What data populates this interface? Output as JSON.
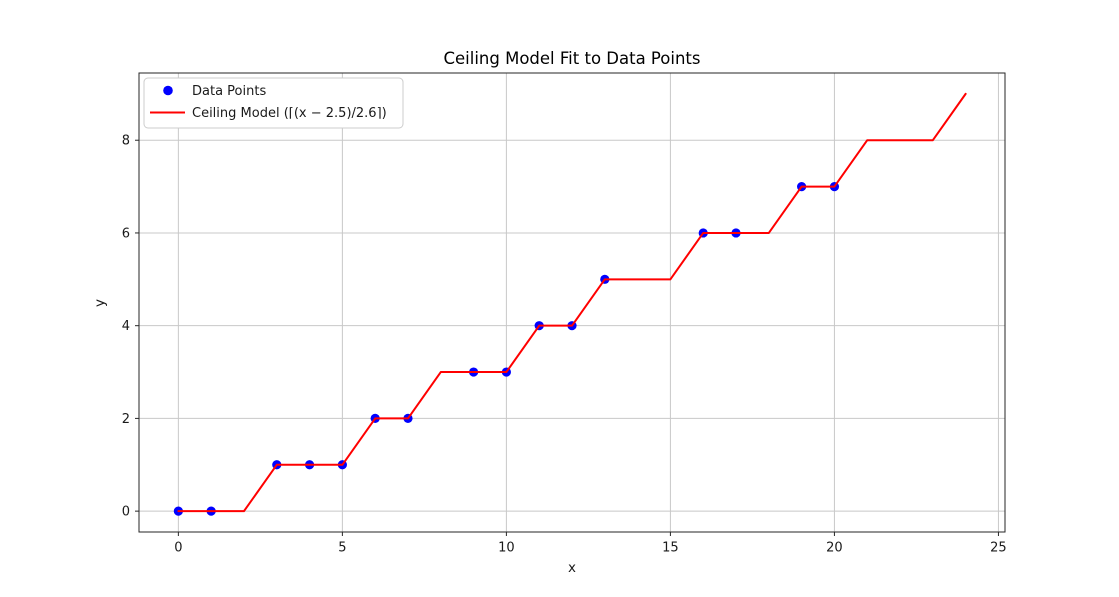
{
  "chart_data": {
    "type": "line",
    "title": "Ceiling Model Fit to Data Points",
    "xlabel": "x",
    "ylabel": "y",
    "xlim": [
      -1.2,
      25.2
    ],
    "ylim": [
      -0.45,
      9.45
    ],
    "x_ticks": [
      0,
      5,
      10,
      15,
      20,
      25
    ],
    "y_ticks": [
      0,
      2,
      4,
      6,
      8
    ],
    "grid": true,
    "grid_color": "#c8c8c8",
    "axis_color": "#262626",
    "background_color": "#ffffff",
    "legend": {
      "position": "upper-left",
      "background": "#ffffff",
      "border_color": "#cccccc"
    },
    "series": [
      {
        "name": "Data Points",
        "type": "scatter",
        "color": "#0000ff",
        "marker": "circle",
        "x": [
          0,
          1,
          3,
          4,
          5,
          6,
          7,
          9,
          10,
          11,
          12,
          13,
          16,
          17,
          19,
          20
        ],
        "y": [
          0,
          0,
          1,
          1,
          1,
          2,
          2,
          3,
          3,
          4,
          4,
          5,
          6,
          6,
          7,
          7
        ]
      },
      {
        "name": "Ceiling Model (⌈(x − 2.5)/2.6⌉)",
        "type": "line",
        "color": "#ff0000",
        "x": [
          0,
          1,
          2,
          3,
          4,
          5,
          6,
          7,
          8,
          9,
          10,
          11,
          12,
          13,
          14,
          15,
          16,
          17,
          18,
          19,
          20,
          21,
          22,
          23,
          24
        ],
        "y": [
          0,
          0,
          0,
          1,
          1,
          1,
          2,
          2,
          3,
          3,
          3,
          4,
          4,
          5,
          5,
          5,
          6,
          6,
          6,
          7,
          7,
          8,
          8,
          8,
          9
        ]
      }
    ]
  }
}
